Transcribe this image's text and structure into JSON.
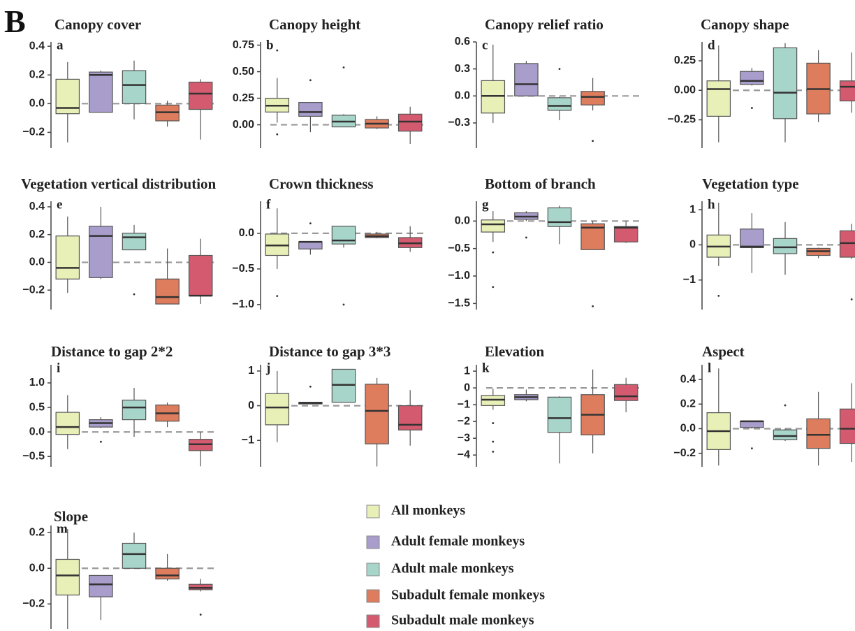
{
  "figure_label": "B",
  "legend": [
    {
      "name": "All monkeys",
      "color": "#e8efb7"
    },
    {
      "name": "Adult female monkeys",
      "color": "#a99dcc"
    },
    {
      "name": "Adult male monkeys",
      "color": "#a8d5ca"
    },
    {
      "name": "Subadult female monkeys",
      "color": "#de7c5e"
    },
    {
      "name": "Subadult male monkeys",
      "color": "#d45b6f"
    }
  ],
  "chart_data": [
    {
      "type": "box",
      "title": "Canopy cover",
      "label": "a",
      "ylim": [
        -0.31,
        0.43
      ],
      "refline": 0,
      "yticks": [
        {
          "value": -0.2,
          "label": "−0.2"
        },
        {
          "value": 0,
          "label": "0.0"
        },
        0.2,
        0.4
      ],
      "boxes": [
        {
          "low": -0.27,
          "q1": -0.07,
          "median": -0.03,
          "q3": 0.17,
          "high": 0.29
        },
        {
          "low": -0.06,
          "q1": -0.06,
          "median": 0.2,
          "q3": 0.22,
          "high": 0.23
        },
        {
          "low": -0.11,
          "q1": 0.0,
          "median": 0.13,
          "q3": 0.23,
          "high": 0.3
        },
        {
          "low": -0.16,
          "q1": -0.12,
          "median": -0.06,
          "q3": -0.01,
          "high": 0.02
        },
        {
          "low": -0.25,
          "q1": -0.04,
          "median": 0.07,
          "q3": 0.15,
          "high": 0.17
        }
      ]
    },
    {
      "type": "box",
      "title": "Canopy height",
      "label": "b",
      "ylim": [
        -0.22,
        0.78
      ],
      "refline": 0,
      "yticks": [
        {
          "value": 0,
          "label": "0.00"
        },
        0.25,
        {
          "value": 0.5,
          "label": "0.50"
        },
        0.75
      ],
      "boxes": [
        {
          "low": 0.02,
          "q1": 0.12,
          "median": 0.18,
          "q3": 0.25,
          "high": 0.44,
          "outliers": [
            -0.09,
            0.7
          ]
        },
        {
          "low": -0.07,
          "q1": 0.08,
          "median": 0.12,
          "q3": 0.21,
          "high": 0.21,
          "outliers": [
            0.42
          ]
        },
        {
          "low": -0.02,
          "q1": -0.02,
          "median": 0.03,
          "q3": 0.09,
          "high": 0.1,
          "outliers": [
            0.54
          ]
        },
        {
          "low": -0.04,
          "q1": -0.03,
          "median": 0.01,
          "q3": 0.05,
          "high": 0.08
        },
        {
          "low": -0.18,
          "q1": -0.06,
          "median": 0.03,
          "q3": 0.1,
          "high": 0.17
        }
      ]
    },
    {
      "type": "box",
      "title": "Canopy relief ratio",
      "label": "c",
      "ylim": [
        -0.58,
        0.6
      ],
      "refline": 0,
      "yticks": [
        {
          "value": -0.3,
          "label": "−0.3"
        },
        {
          "value": 0,
          "label": "0.0"
        },
        0.3,
        0.6
      ],
      "boxes": [
        {
          "low": -0.3,
          "q1": -0.19,
          "median": 0.0,
          "q3": 0.17,
          "high": 0.57
        },
        {
          "low": 0.0,
          "q1": 0.0,
          "median": 0.13,
          "q3": 0.36,
          "high": 0.39
        },
        {
          "low": -0.27,
          "q1": -0.16,
          "median": -0.11,
          "q3": -0.02,
          "high": -0.01,
          "outliers": [
            0.3
          ]
        },
        {
          "low": -0.16,
          "q1": -0.1,
          "median": -0.01,
          "q3": 0.05,
          "high": 0.2,
          "outliers": [
            -0.5
          ]
        },
        null
      ]
    },
    {
      "type": "box",
      "title": "Canopy shape",
      "label": "d",
      "ylim": [
        -0.49,
        0.41
      ],
      "refline": 0,
      "yticks": [
        {
          "value": -0.25,
          "label": "−0.25"
        },
        {
          "value": 0,
          "label": "0.00"
        },
        0.25
      ],
      "boxes": [
        {
          "low": -0.44,
          "q1": -0.22,
          "median": 0.01,
          "q3": 0.08,
          "high": 0.38
        },
        {
          "low": 0.04,
          "q1": 0.05,
          "median": 0.08,
          "q3": 0.16,
          "high": 0.19,
          "outliers": [
            -0.15
          ]
        },
        {
          "low": -0.44,
          "q1": -0.24,
          "median": -0.02,
          "q3": 0.36,
          "high": 0.4
        },
        {
          "low": -0.27,
          "q1": -0.2,
          "median": 0.01,
          "q3": 0.23,
          "high": 0.34
        },
        {
          "low": -0.19,
          "q1": -0.09,
          "median": 0.03,
          "q3": 0.08,
          "high": 0.32
        }
      ]
    },
    {
      "type": "box",
      "title": "Vegetation vertical distribution",
      "label": "e",
      "ylim": [
        -0.34,
        0.44
      ],
      "refline": 0,
      "yticks": [
        {
          "value": -0.2,
          "label": "−0.2"
        },
        {
          "value": 0,
          "label": "0.0"
        },
        0.2,
        0.4
      ],
      "boxes": [
        {
          "low": -0.22,
          "q1": -0.12,
          "median": -0.04,
          "q3": 0.19,
          "high": 0.33
        },
        {
          "low": -0.12,
          "q1": -0.11,
          "median": 0.19,
          "q3": 0.26,
          "high": 0.4
        },
        {
          "low": 0.09,
          "q1": 0.09,
          "median": 0.18,
          "q3": 0.21,
          "high": 0.27,
          "outliers": [
            -0.23
          ]
        },
        {
          "low": -0.3,
          "q1": -0.3,
          "median": -0.25,
          "q3": -0.12,
          "high": 0.1
        },
        {
          "low": -0.3,
          "q1": -0.24,
          "median": -0.24,
          "q3": 0.05,
          "high": 0.17
        }
      ]
    },
    {
      "type": "box",
      "title": "Crown thickness",
      "label": "f",
      "ylim": [
        -1.07,
        0.45
      ],
      "refline": 0,
      "yticks": [
        {
          "value": -1,
          "label": "−1.0"
        },
        {
          "value": -0.5,
          "label": "−0.5"
        },
        {
          "value": 0,
          "label": "0.0"
        }
      ],
      "boxes": [
        {
          "low": -0.5,
          "q1": -0.31,
          "median": -0.17,
          "q3": -0.01,
          "high": 0.35,
          "outliers": [
            -0.88
          ]
        },
        {
          "low": -0.3,
          "q1": -0.22,
          "median": -0.12,
          "q3": -0.12,
          "high": -0.12,
          "outliers": [
            0.14
          ]
        },
        {
          "low": -0.2,
          "q1": -0.15,
          "median": -0.1,
          "q3": 0.1,
          "high": 0.1,
          "outliers": [
            -1.0
          ]
        },
        {
          "low": -0.07,
          "q1": -0.06,
          "median": -0.04,
          "q3": -0.01,
          "high": 0.02
        },
        {
          "low": -0.26,
          "q1": -0.2,
          "median": -0.14,
          "q3": -0.06,
          "high": 0.1
        }
      ]
    },
    {
      "type": "box",
      "title": "Bottom of branch",
      "label": "g",
      "ylim": [
        -1.61,
        0.36
      ],
      "refline": 0,
      "yticks": [
        {
          "value": -1.5,
          "label": "−1.5"
        },
        {
          "value": -1,
          "label": "−1.0"
        },
        {
          "value": -0.5,
          "label": "−0.5"
        },
        {
          "value": 0,
          "label": "0.0"
        }
      ],
      "boxes": [
        {
          "low": -0.38,
          "q1": -0.2,
          "median": -0.06,
          "q3": 0.02,
          "high": 0.18,
          "outliers": [
            -0.57,
            -1.2
          ]
        },
        {
          "low": 0.0,
          "q1": 0.03,
          "median": 0.08,
          "q3": 0.15,
          "high": 0.18,
          "outliers": [
            -0.3
          ]
        },
        {
          "low": -0.42,
          "q1": -0.1,
          "median": -0.02,
          "q3": 0.24,
          "high": 0.28
        },
        {
          "low": -0.52,
          "q1": -0.52,
          "median": -0.12,
          "q3": -0.05,
          "high": 0.0,
          "outliers": [
            -1.55
          ]
        },
        {
          "low": -0.4,
          "q1": -0.38,
          "median": -0.12,
          "q3": -0.1,
          "high": 0.0
        }
      ]
    },
    {
      "type": "box",
      "title": "Vegetation type",
      "label": "h",
      "ylim": [
        -1.84,
        1.24
      ],
      "refline": 0,
      "yticks": [
        {
          "value": -1,
          "label": "−1"
        },
        0,
        1
      ],
      "boxes": [
        {
          "low": -0.6,
          "q1": -0.35,
          "median": -0.05,
          "q3": 0.28,
          "high": 1.2,
          "outliers": [
            -1.45
          ]
        },
        {
          "low": -0.8,
          "q1": -0.08,
          "median": -0.05,
          "q3": 0.45,
          "high": 0.9
        },
        {
          "low": -0.85,
          "q1": -0.25,
          "median": -0.07,
          "q3": 0.18,
          "high": 0.65
        },
        {
          "low": -0.38,
          "q1": -0.3,
          "median": -0.18,
          "q3": -0.1,
          "high": -0.08
        },
        {
          "low": -0.4,
          "q1": -0.35,
          "median": 0.05,
          "q3": 0.4,
          "high": 0.6,
          "outliers": [
            -1.55
          ]
        }
      ]
    },
    {
      "type": "box",
      "title": "Distance to gap 2*2",
      "label": "i",
      "ylim": [
        -0.71,
        1.37
      ],
      "refline": 0,
      "yticks": [
        {
          "value": -0.5,
          "label": "−0.5"
        },
        {
          "value": 0,
          "label": "0.0"
        },
        0.5,
        {
          "value": 1,
          "label": "1.0"
        }
      ],
      "boxes": [
        {
          "low": -0.35,
          "q1": -0.05,
          "median": 0.1,
          "q3": 0.4,
          "high": 0.75
        },
        {
          "low": 0.08,
          "q1": 0.1,
          "median": 0.18,
          "q3": 0.25,
          "high": 0.3,
          "outliers": [
            -0.2
          ]
        },
        {
          "low": -0.1,
          "q1": 0.25,
          "median": 0.5,
          "q3": 0.65,
          "high": 0.9
        },
        {
          "low": 0.1,
          "q1": 0.22,
          "median": 0.38,
          "q3": 0.55,
          "high": 0.6
        },
        {
          "low": -0.7,
          "q1": -0.38,
          "median": -0.25,
          "q3": -0.15,
          "high": 0.0
        }
      ]
    },
    {
      "type": "box",
      "title": "Distance to gap 3*3",
      "label": "j",
      "ylim": [
        -1.76,
        1.18
      ],
      "refline": 0,
      "yticks": [
        {
          "value": -1,
          "label": "−1"
        },
        0,
        1
      ],
      "boxes": [
        {
          "low": -1.05,
          "q1": -0.55,
          "median": -0.05,
          "q3": 0.35,
          "high": 1.0
        },
        {
          "low": 0.05,
          "q1": 0.05,
          "median": 0.08,
          "q3": 0.1,
          "high": 0.1,
          "outliers": [
            0.55
          ]
        },
        {
          "low": 0.1,
          "q1": 0.1,
          "median": 0.6,
          "q3": 1.05,
          "high": 1.05
        },
        {
          "low": -1.75,
          "q1": -1.1,
          "median": -0.15,
          "q3": 0.62,
          "high": 0.8
        },
        {
          "low": -1.15,
          "q1": -0.7,
          "median": -0.55,
          "q3": 0.0,
          "high": 0.45
        }
      ]
    },
    {
      "type": "box",
      "title": "Elevation",
      "label": "k",
      "ylim": [
        -4.7,
        1.38
      ],
      "refline": 0,
      "yticks": [
        {
          "value": -4,
          "label": "−4"
        },
        {
          "value": -3,
          "label": "−3"
        },
        {
          "value": -2,
          "label": "−2"
        },
        {
          "value": -1,
          "label": "−1"
        },
        0,
        1
      ],
      "boxes": [
        {
          "low": -1.3,
          "q1": -1.05,
          "median": -0.7,
          "q3": -0.45,
          "high": -0.05,
          "outliers": [
            -2.1,
            -3.2,
            -3.8
          ]
        },
        {
          "low": -0.8,
          "q1": -0.7,
          "median": -0.55,
          "q3": -0.4,
          "high": -0.1
        },
        {
          "low": -4.5,
          "q1": -2.65,
          "median": -1.8,
          "q3": -0.55,
          "high": -0.5
        },
        {
          "low": -3.9,
          "q1": -2.8,
          "median": -1.6,
          "q3": -0.4,
          "high": 1.1
        },
        {
          "low": -1.45,
          "q1": -0.75,
          "median": -0.5,
          "q3": 0.2,
          "high": 0.6
        }
      ]
    },
    {
      "type": "box",
      "title": "Aspect",
      "label": "l",
      "ylim": [
        -0.31,
        0.52
      ],
      "refline": 0,
      "yticks": [
        {
          "value": -0.2,
          "label": "−0.2"
        },
        {
          "value": 0,
          "label": "0.0"
        },
        0.2,
        0.4
      ],
      "boxes": [
        {
          "low": -0.3,
          "q1": -0.17,
          "median": -0.02,
          "q3": 0.13,
          "high": 0.49
        },
        {
          "low": 0.0,
          "q1": 0.01,
          "median": 0.06,
          "q3": 0.06,
          "high": 0.06,
          "outliers": [
            -0.16
          ]
        },
        {
          "low": -0.1,
          "q1": -0.09,
          "median": -0.06,
          "q3": -0.01,
          "high": 0.0,
          "outliers": [
            0.19
          ]
        },
        {
          "low": -0.3,
          "q1": -0.16,
          "median": -0.05,
          "q3": 0.08,
          "high": 0.3
        },
        {
          "low": -0.27,
          "q1": -0.12,
          "median": 0.0,
          "q3": 0.16,
          "high": 0.37
        }
      ]
    },
    {
      "type": "box",
      "title": "Slope",
      "label": "m",
      "ylim": [
        -0.34,
        0.24
      ],
      "refline": 0,
      "yticks": [
        {
          "value": -0.2,
          "label": "−0.2"
        },
        {
          "value": 0,
          "label": "0.0"
        },
        0.2
      ],
      "boxes": [
        {
          "low": -0.34,
          "q1": -0.15,
          "median": -0.04,
          "q3": 0.05,
          "high": 0.22
        },
        {
          "low": -0.29,
          "q1": -0.16,
          "median": -0.09,
          "q3": -0.04,
          "high": -0.04
        },
        {
          "low": 0.0,
          "q1": 0.0,
          "median": 0.08,
          "q3": 0.14,
          "high": 0.2
        },
        {
          "low": -0.07,
          "q1": -0.06,
          "median": -0.04,
          "q3": 0.0,
          "high": 0.08
        },
        {
          "low": -0.13,
          "q1": -0.12,
          "median": -0.11,
          "q3": -0.09,
          "high": -0.06,
          "outliers": [
            -0.26
          ]
        }
      ]
    }
  ]
}
